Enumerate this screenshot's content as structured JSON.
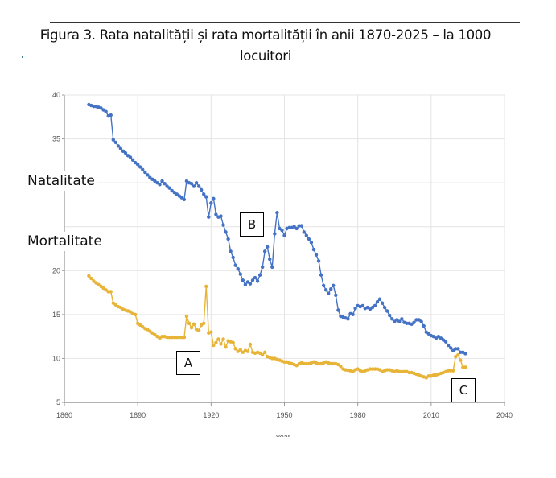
{
  "title_line1": "Figura 3. Rata natalității și rata mortalității în anii 1870-2025  –  la 1000",
  "title_line2": "locuitori",
  "labels": {
    "natalitate": "Natalitate",
    "mortalitate": "Mortalitate"
  },
  "annotations": {
    "a": "A",
    "b": "B",
    "c": "C"
  },
  "chart_data": {
    "type": "line",
    "xlabel": "year",
    "ylabel": "",
    "xlim": [
      1860,
      2040
    ],
    "ylim": [
      5,
      40
    ],
    "xticks": [
      "1860",
      "1890",
      "1920",
      "1950",
      "1980",
      "2010",
      "2040"
    ],
    "yticks": [
      "5",
      "10",
      "15",
      "20",
      "35",
      "40"
    ],
    "grid": true,
    "markers": true,
    "x_first": 1870,
    "x_last": 2024,
    "series": [
      {
        "name": "Natalitate",
        "color": "#4472c4",
        "values": [
          38.9,
          38.8,
          38.7,
          38.7,
          38.6,
          38.5,
          38.3,
          38.1,
          37.6,
          37.7,
          34.9,
          34.6,
          34.2,
          33.9,
          33.6,
          33.4,
          33.1,
          32.9,
          32.6,
          32.3,
          32.1,
          31.8,
          31.5,
          31.2,
          30.9,
          30.6,
          30.4,
          30.2,
          30.0,
          29.8,
          30.2,
          29.9,
          29.6,
          29.4,
          29.1,
          28.9,
          28.7,
          28.5,
          28.3,
          28.1,
          30.2,
          30.0,
          29.9,
          29.6,
          30.0,
          29.6,
          29.2,
          28.7,
          28.4,
          26.1,
          27.7,
          28.2,
          26.4,
          26.1,
          26.2,
          25.2,
          24.4,
          23.6,
          22.2,
          21.5,
          20.6,
          20.2,
          19.6,
          18.9,
          18.4,
          18.7,
          18.5,
          18.9,
          19.2,
          18.8,
          19.5,
          20.4,
          22.2,
          22.7,
          21.3,
          20.4,
          24.2,
          26.6,
          24.8,
          24.6,
          24.0,
          24.8,
          24.9,
          24.9,
          25.0,
          24.8,
          25.1,
          25.1,
          24.4,
          24.0,
          23.6,
          23.2,
          22.4,
          21.8,
          21.1,
          19.5,
          18.3,
          17.8,
          17.4,
          17.9,
          18.3,
          17.2,
          15.5,
          14.8,
          14.7,
          14.6,
          14.5,
          15.1,
          15.0,
          15.7,
          16.0,
          15.9,
          16.0,
          15.7,
          15.8,
          15.6,
          15.8,
          16.0,
          16.45,
          16.75,
          16.3,
          15.8,
          15.4,
          14.9,
          14.5,
          14.2,
          14.4,
          14.2,
          14.5,
          14.1,
          14.0,
          14.0,
          13.9,
          14.1,
          14.4,
          14.4,
          14.2,
          13.7,
          13.0,
          12.8,
          12.6,
          12.5,
          12.3,
          12.5,
          12.3,
          12.1,
          11.9,
          11.5,
          11.2,
          10.9,
          11.1,
          11.1,
          10.7,
          10.7,
          10.55
        ]
      },
      {
        "name": "Mortalitate",
        "color": "#e8b437",
        "values": [
          19.4,
          19.1,
          18.8,
          18.6,
          18.4,
          18.2,
          18.0,
          17.8,
          17.6,
          17.6,
          16.3,
          16.1,
          15.9,
          15.8,
          15.6,
          15.5,
          15.4,
          15.3,
          15.1,
          15.0,
          14.0,
          13.8,
          13.6,
          13.4,
          13.3,
          13.1,
          12.9,
          12.7,
          12.5,
          12.3,
          12.5,
          12.5,
          12.4,
          12.4,
          12.4,
          12.4,
          12.4,
          12.4,
          12.4,
          12.4,
          14.8,
          14.0,
          13.5,
          13.9,
          13.3,
          13.2,
          13.8,
          14.0,
          18.2,
          12.9,
          13.0,
          11.5,
          11.8,
          12.2,
          11.65,
          12.2,
          11.3,
          12.0,
          11.9,
          11.8,
          11.1,
          10.8,
          11.0,
          10.7,
          10.9,
          10.8,
          11.6,
          10.7,
          10.6,
          10.7,
          10.6,
          10.4,
          10.7,
          10.2,
          10.1,
          10.0,
          10.0,
          9.9,
          9.8,
          9.7,
          9.6,
          9.6,
          9.5,
          9.4,
          9.3,
          9.2,
          9.4,
          9.5,
          9.4,
          9.4,
          9.4,
          9.5,
          9.6,
          9.5,
          9.4,
          9.4,
          9.5,
          9.6,
          9.5,
          9.4,
          9.4,
          9.4,
          9.3,
          9.1,
          8.8,
          8.7,
          8.65,
          8.6,
          8.5,
          8.7,
          8.8,
          8.6,
          8.5,
          8.6,
          8.7,
          8.8,
          8.8,
          8.8,
          8.8,
          8.7,
          8.5,
          8.6,
          8.7,
          8.7,
          8.6,
          8.5,
          8.6,
          8.5,
          8.5,
          8.5,
          8.5,
          8.4,
          8.4,
          8.3,
          8.2,
          8.1,
          8.0,
          7.9,
          7.8,
          8.0,
          8.0,
          8.1,
          8.1,
          8.2,
          8.3,
          8.4,
          8.5,
          8.6,
          8.6,
          8.6,
          10.2,
          10.4,
          9.8,
          9.0,
          9.0
        ]
      }
    ]
  }
}
